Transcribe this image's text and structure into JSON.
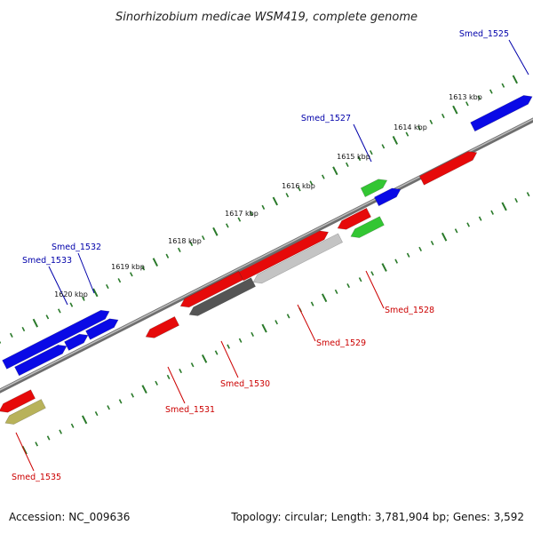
{
  "title": "Sinorhizobium medicae WSM419, complete genome",
  "footer": {
    "accession": "Accession: NC_009636",
    "meta": "Topology: circular; Length: 3,781,904 bp; Genes: 3,592"
  },
  "colors": {
    "backbone": "#8a8a8a",
    "tick": "#2a7a2a",
    "blue": "#0a0ae6",
    "red": "#e60a0a",
    "green": "#33c633",
    "olive": "#b8b25a",
    "darkgray": "#555555",
    "lightgray": "#c4c4c4",
    "blue_label": "#0000aa",
    "red_label": "#cc0000"
  },
  "kbp_labels": [
    "1613 kbp",
    "1614 kbp",
    "1615 kbp",
    "1616 kbp",
    "1617 kbp",
    "1618 kbp",
    "1619 kbp",
    "1620 kbp"
  ],
  "gene_labels": [
    "Smed_1525",
    "Smed_1527",
    "Smed_1532",
    "Smed_1533",
    "Smed_1528",
    "Smed_1529",
    "Smed_1530",
    "Smed_1531",
    "Smed_1535"
  ]
}
